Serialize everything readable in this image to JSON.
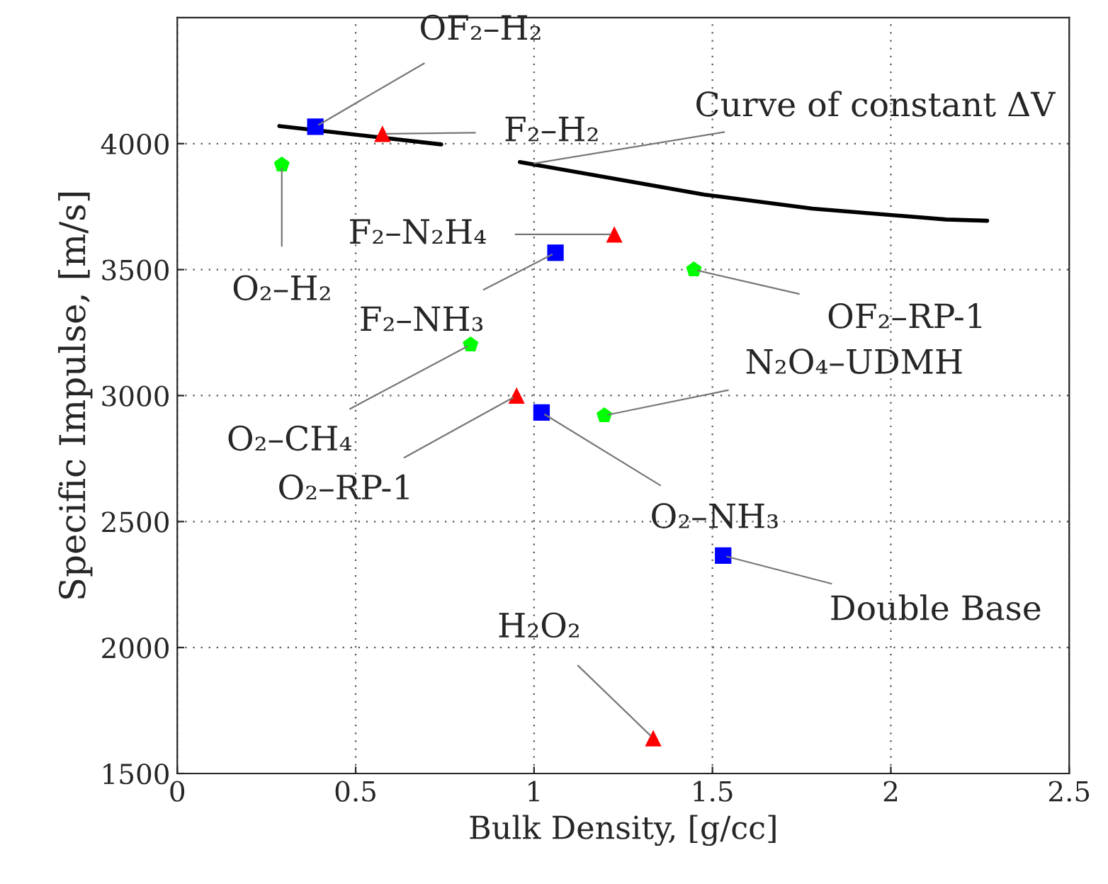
{
  "chart_data": {
    "type": "scatter",
    "xlabel": "Bulk Density, [g/cc]",
    "ylabel": "Specific Impulse, [m/s]",
    "xlim": [
      0,
      2.5
    ],
    "xticks": [
      0,
      0.5,
      1,
      1.5,
      2,
      2.5
    ],
    "ylim": [
      1500,
      4500
    ],
    "yticks": [
      1500,
      2000,
      2500,
      3000,
      3500,
      4000
    ],
    "grid": true,
    "legend": false,
    "series": [
      {
        "type": "line",
        "color": "#000000",
        "marker": "none",
        "line_style": "solid",
        "x": [
          0.286,
          0.74,
          0.86,
          0.96,
          1.477,
          1.78,
          2.155,
          2.27
        ],
        "values": [
          4070,
          3997,
          null,
          3927,
          3798,
          3742,
          3699,
          3694
        ]
      },
      {
        "color": "#0000ff",
        "marker": "square",
        "x": [
          0.387,
          1.06,
          1.021,
          1.53
        ],
        "values": [
          4067,
          3567,
          2933,
          2365
        ]
      },
      {
        "color": "#ff0000",
        "marker": "triangle",
        "x": [
          0.575,
          1.225,
          0.951,
          1.334
        ],
        "values": [
          4039,
          3640,
          3000,
          1640
        ]
      },
      {
        "color": "#00ff00",
        "x": [
          0.293,
          1.448,
          0.822,
          1.197
        ],
        "values": [
          3916,
          3500,
          3202,
          2921
        ]
      }
    ],
    "annotations": [
      {
        "text": "OF₂–H₂",
        "x": 0.387,
        "y": 4067
      },
      {
        "text": "F₂–H₂",
        "x": 0.575,
        "y": 4039
      },
      {
        "text": "Curve of constant ΔV",
        "x": 0.99,
        "y": 3919
      },
      {
        "text": "O₂–H₂",
        "x": 0.293,
        "y": 3916
      },
      {
        "text": "F₂–N₂H₄",
        "x": 1.225,
        "y": 3640
      },
      {
        "text": "F₂–NH₃",
        "x": 1.06,
        "y": 3567
      },
      {
        "text": "OF₂–RP-1",
        "x": 1.448,
        "y": 3500
      },
      {
        "text": "O₂–CH₄",
        "x": 0.822,
        "y": 3202
      },
      {
        "text": "O₂–RP-1",
        "x": 0.951,
        "y": 3000
      },
      {
        "text": "O₂–NH₃",
        "x": 1.021,
        "y": 2933
      },
      {
        "text": "N₂O₄–UDMH",
        "x": 1.197,
        "y": 2921
      },
      {
        "text": "Double Base",
        "x": 1.53,
        "y": 2365
      },
      {
        "text": "H₂O₂",
        "x": 1.334,
        "y": 1640
      }
    ]
  }
}
